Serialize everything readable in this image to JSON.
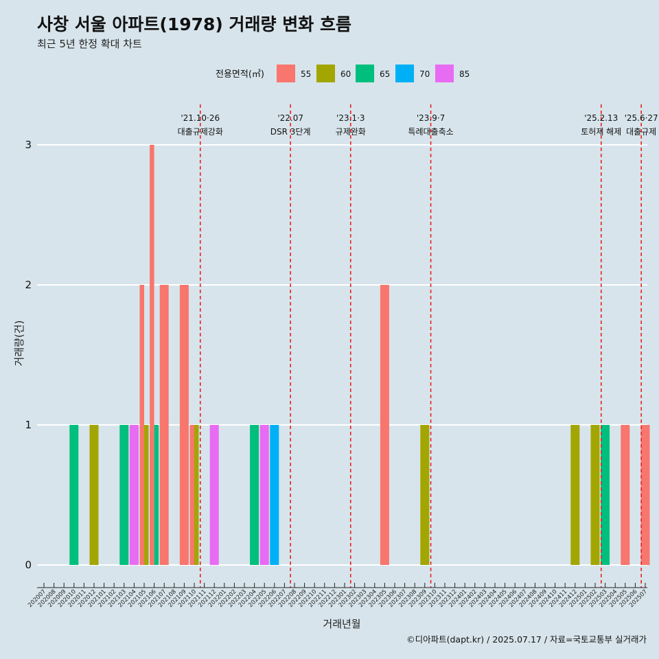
{
  "title": "사창 서울 아파트(1978) 거래량 변화 흐름",
  "subtitle": "최근 5년 한정 확대 차트",
  "caption": "©디아파트(dapt.kr) / 2025.07.17 / 자료=국토교통부 실거래가",
  "chart_data": {
    "type": "bar",
    "xlabel": "거래년월",
    "ylabel": "거래량(건)",
    "ylim": [
      0,
      3
    ],
    "yticks": [
      0,
      1,
      2,
      3
    ],
    "grid": "horizontal",
    "legend": {
      "title": "전용면적(㎡)",
      "position": "top",
      "entries": [
        {
          "label": "55",
          "color": "#F8766D"
        },
        {
          "label": "60",
          "color": "#A3A500"
        },
        {
          "label": "65",
          "color": "#00BF7D"
        },
        {
          "label": "70",
          "color": "#00B0F6"
        },
        {
          "label": "85",
          "color": "#E76BF3"
        }
      ]
    },
    "categories": [
      "202007",
      "202008",
      "202009",
      "202010",
      "202011",
      "202012",
      "202101",
      "202102",
      "202103",
      "202104",
      "202105",
      "202106",
      "202107",
      "202108",
      "202109",
      "202110",
      "202111",
      "202112",
      "202201",
      "202202",
      "202203",
      "202204",
      "202205",
      "202206",
      "202207",
      "202208",
      "202209",
      "202210",
      "202211",
      "202212",
      "202301",
      "202302",
      "202303",
      "202304",
      "202305",
      "202306",
      "202307",
      "202308",
      "202309",
      "202310",
      "202311",
      "202312",
      "202401",
      "202402",
      "202403",
      "202404",
      "202405",
      "202406",
      "202407",
      "202408",
      "202409",
      "202410",
      "202411",
      "202412",
      "202501",
      "202502",
      "202503",
      "202504",
      "202505",
      "202506",
      "202507"
    ],
    "bars": [
      {
        "month": "202010",
        "area": "65",
        "value": 1
      },
      {
        "month": "202012",
        "area": "60",
        "value": 1
      },
      {
        "month": "202103",
        "area": "65",
        "value": 1
      },
      {
        "month": "202104",
        "area": "85",
        "value": 1
      },
      {
        "month": "202105",
        "area": "55",
        "value": 2
      },
      {
        "month": "202105",
        "area": "60",
        "value": 1
      },
      {
        "month": "202106",
        "area": "55",
        "value": 3
      },
      {
        "month": "202106",
        "area": "65",
        "value": 1
      },
      {
        "month": "202107",
        "area": "55",
        "value": 2
      },
      {
        "month": "202109",
        "area": "55",
        "value": 2
      },
      {
        "month": "202110",
        "area": "55",
        "value": 1
      },
      {
        "month": "202110",
        "area": "60",
        "value": 1
      },
      {
        "month": "202112",
        "area": "85",
        "value": 1
      },
      {
        "month": "202204",
        "area": "65",
        "value": 1
      },
      {
        "month": "202205",
        "area": "85",
        "value": 1
      },
      {
        "month": "202206",
        "area": "70",
        "value": 1
      },
      {
        "month": "202305",
        "area": "55",
        "value": 2
      },
      {
        "month": "202309",
        "area": "60",
        "value": 1
      },
      {
        "month": "202412",
        "area": "60",
        "value": 1
      },
      {
        "month": "202502",
        "area": "60",
        "value": 1
      },
      {
        "month": "202503",
        "area": "65",
        "value": 1
      },
      {
        "month": "202505",
        "area": "55",
        "value": 1
      },
      {
        "month": "202507",
        "area": "55",
        "value": 1
      }
    ],
    "annotations": [
      {
        "x": 15.6,
        "date": "'21.10·26",
        "label": "대출규제강화"
      },
      {
        "x": 24.6,
        "date": "'22.07",
        "label": "DSR 3단계"
      },
      {
        "x": 30.6,
        "date": "'23.1·3",
        "label": "규제완화"
      },
      {
        "x": 38.6,
        "date": "'23.9·7",
        "label": "특례대출축소"
      },
      {
        "x": 55.6,
        "date": "'25.2.13",
        "label": "토허제 해제"
      },
      {
        "x": 59.6,
        "date": "'25.6·27",
        "label": "대출규제"
      }
    ]
  }
}
